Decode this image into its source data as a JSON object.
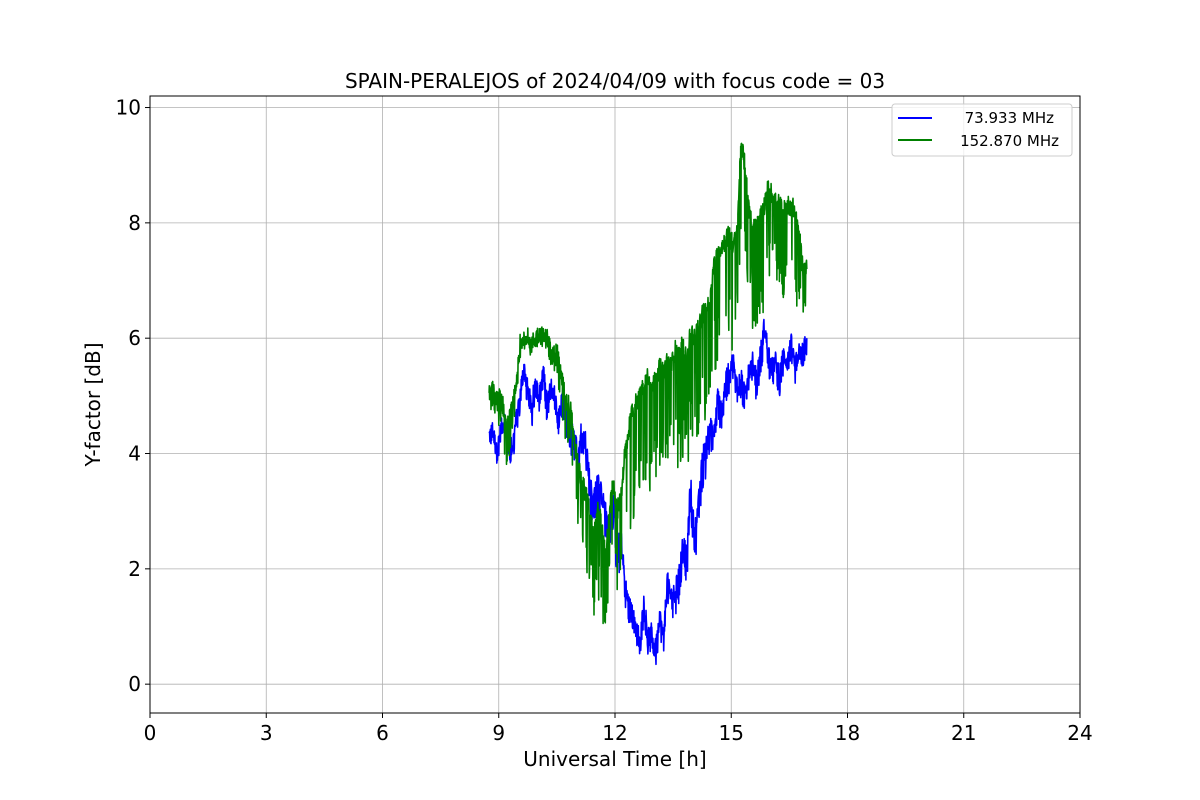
{
  "chart_data": {
    "type": "line",
    "title": "SPAIN-PERALEJOS of 2024/04/09 with focus code = 03",
    "xlabel": "Universal Time [h]",
    "ylabel": "Y-factor [dB]",
    "xlim": [
      0,
      24
    ],
    "ylim": [
      -0.5,
      10.2
    ],
    "xticks": [
      0,
      3,
      6,
      9,
      12,
      15,
      18,
      21,
      24
    ],
    "yticks": [
      0,
      2,
      4,
      6,
      8,
      10
    ],
    "xtick_labels": [
      "0",
      "3",
      "6",
      "9",
      "12",
      "15",
      "18",
      "21",
      "24"
    ],
    "ytick_labels": [
      "0",
      "2",
      "4",
      "6",
      "8",
      "10"
    ],
    "grid": true,
    "legend_position": "top-right",
    "series": [
      {
        "name": "73.933 MHz",
        "color": "#0000ff",
        "x": [
          8.75,
          8.85,
          8.95,
          9.05,
          9.15,
          9.25,
          9.35,
          9.45,
          9.55,
          9.65,
          9.75,
          9.85,
          9.95,
          10.05,
          10.15,
          10.25,
          10.35,
          10.45,
          10.55,
          10.65,
          10.75,
          10.85,
          10.95,
          11.05,
          11.15,
          11.25,
          11.35,
          11.45,
          11.55,
          11.65,
          11.75,
          11.85,
          11.95,
          12.05,
          12.15,
          12.25,
          12.35,
          12.45,
          12.55,
          12.65,
          12.75,
          12.85,
          12.95,
          13.05,
          13.15,
          13.25,
          13.35,
          13.45,
          13.55,
          13.65,
          13.75,
          13.85,
          13.95,
          14.05,
          14.15,
          14.25,
          14.35,
          14.45,
          14.55,
          14.65,
          14.75,
          14.85,
          14.95,
          15.05,
          15.15,
          15.25,
          15.35,
          15.45,
          15.55,
          15.65,
          15.75,
          15.85,
          15.95,
          16.05,
          16.15,
          16.25,
          16.35,
          16.45,
          16.55,
          16.65,
          16.75,
          16.85,
          16.95
        ],
        "y": [
          4.3,
          4.4,
          4.0,
          4.4,
          4.6,
          4.2,
          4.1,
          4.6,
          5.0,
          5.5,
          5.1,
          4.8,
          5.3,
          5.0,
          5.4,
          4.9,
          5.2,
          5.0,
          4.6,
          5.0,
          4.7,
          4.4,
          4.3,
          4.0,
          4.5,
          4.2,
          3.5,
          3.2,
          3.6,
          3.3,
          3.0,
          2.8,
          3.3,
          2.4,
          2.6,
          1.8,
          1.4,
          1.2,
          1.0,
          0.7,
          1.5,
          0.8,
          0.9,
          0.6,
          1.2,
          0.8,
          1.8,
          1.5,
          1.6,
          1.9,
          2.5,
          2.2,
          3.5,
          2.6,
          3.1,
          3.9,
          4.2,
          4.5,
          4.3,
          5.0,
          4.7,
          5.2,
          5.5,
          5.6,
          5.2,
          5.3,
          5.1,
          5.4,
          5.6,
          5.3,
          5.7,
          6.2,
          5.8,
          5.5,
          5.6,
          5.4,
          5.7,
          5.6,
          5.9,
          5.5,
          5.8,
          5.8,
          6.0
        ],
        "amp": [
          0.2,
          0.2,
          0.3,
          0.3,
          0.3,
          0.3,
          0.4,
          0.3,
          0.3,
          0.3,
          0.3,
          0.4,
          0.3,
          0.3,
          0.3,
          0.4,
          0.3,
          0.3,
          0.3,
          0.3,
          0.4,
          0.4,
          0.5,
          0.5,
          0.5,
          0.5,
          0.6,
          0.6,
          0.6,
          0.6,
          0.5,
          0.6,
          0.6,
          0.6,
          0.6,
          0.5,
          0.4,
          0.4,
          0.3,
          0.3,
          0.4,
          0.3,
          0.3,
          0.3,
          0.4,
          0.3,
          0.4,
          0.4,
          0.5,
          0.5,
          0.5,
          0.5,
          0.6,
          0.6,
          0.6,
          0.6,
          0.6,
          0.6,
          0.5,
          0.5,
          0.5,
          0.5,
          0.5,
          0.4,
          0.4,
          0.4,
          0.4,
          0.4,
          0.4,
          0.4,
          0.4,
          0.5,
          0.4,
          0.4,
          0.4,
          0.4,
          0.4,
          0.3,
          0.3,
          0.3,
          0.3,
          0.3,
          0.3
        ]
      },
      {
        "name": "152.870 MHz",
        "color": "#008000",
        "x": [
          8.75,
          8.85,
          8.95,
          9.05,
          9.15,
          9.25,
          9.35,
          9.45,
          9.55,
          9.65,
          9.75,
          9.85,
          9.95,
          10.05,
          10.15,
          10.25,
          10.35,
          10.45,
          10.55,
          10.65,
          10.75,
          10.85,
          10.95,
          11.05,
          11.15,
          11.25,
          11.35,
          11.45,
          11.55,
          11.65,
          11.75,
          11.85,
          11.95,
          12.05,
          12.15,
          12.25,
          12.35,
          12.45,
          12.55,
          12.65,
          12.75,
          12.85,
          12.95,
          13.05,
          13.15,
          13.25,
          13.35,
          13.45,
          13.55,
          13.65,
          13.75,
          13.85,
          13.95,
          14.05,
          14.15,
          14.25,
          14.35,
          14.45,
          14.55,
          14.65,
          14.75,
          14.85,
          14.95,
          15.05,
          15.15,
          15.25,
          15.35,
          15.45,
          15.55,
          15.65,
          15.75,
          15.85,
          15.95,
          16.05,
          16.15,
          16.25,
          16.35,
          16.45,
          16.55,
          16.65,
          16.75,
          16.85,
          16.95
        ],
        "y": [
          5.0,
          5.1,
          4.9,
          5.0,
          4.7,
          4.5,
          4.8,
          5.2,
          5.9,
          6.0,
          6.1,
          5.9,
          6.0,
          6.1,
          6.0,
          6.0,
          5.8,
          5.9,
          5.6,
          5.2,
          4.9,
          4.8,
          4.2,
          3.8,
          3.5,
          3.3,
          3.0,
          2.5,
          3.0,
          2.8,
          2.2,
          2.9,
          3.5,
          3.0,
          3.2,
          4.0,
          4.4,
          4.8,
          4.9,
          5.0,
          5.2,
          5.4,
          5.2,
          5.3,
          5.5,
          5.4,
          5.6,
          5.5,
          5.8,
          5.7,
          5.9,
          5.6,
          6.1,
          6.0,
          6.2,
          6.4,
          6.5,
          6.6,
          7.3,
          7.5,
          7.6,
          7.7,
          7.8,
          7.6,
          7.8,
          9.4,
          9.0,
          8.3,
          7.9,
          7.9,
          8.1,
          8.3,
          8.6,
          8.5,
          8.4,
          8.3,
          8.2,
          8.3,
          8.3,
          8.2,
          7.8,
          7.2,
          7.2
        ],
        "amp": [
          0.3,
          0.3,
          0.4,
          0.6,
          0.8,
          0.8,
          0.5,
          0.3,
          0.3,
          0.2,
          0.2,
          0.3,
          0.2,
          0.2,
          0.2,
          0.2,
          0.3,
          0.5,
          0.5,
          0.8,
          0.9,
          0.9,
          1.1,
          1.1,
          1.2,
          1.4,
          1.4,
          1.5,
          1.5,
          1.5,
          1.5,
          1.6,
          1.6,
          1.8,
          1.8,
          1.9,
          2.0,
          2.0,
          2.0,
          2.0,
          2.0,
          2.0,
          2.0,
          2.0,
          2.0,
          2.0,
          2.0,
          2.0,
          2.0,
          2.0,
          2.0,
          2.0,
          2.0,
          2.0,
          2.0,
          2.0,
          2.0,
          2.0,
          2.0,
          2.0,
          2.0,
          2.0,
          2.0,
          2.0,
          2.0,
          1.5,
          1.5,
          1.8,
          1.8,
          1.8,
          1.8,
          1.8,
          1.5,
          1.5,
          1.5,
          1.5,
          1.5,
          1.5,
          1.5,
          1.5,
          1.5,
          0.8,
          0.8
        ]
      }
    ]
  }
}
